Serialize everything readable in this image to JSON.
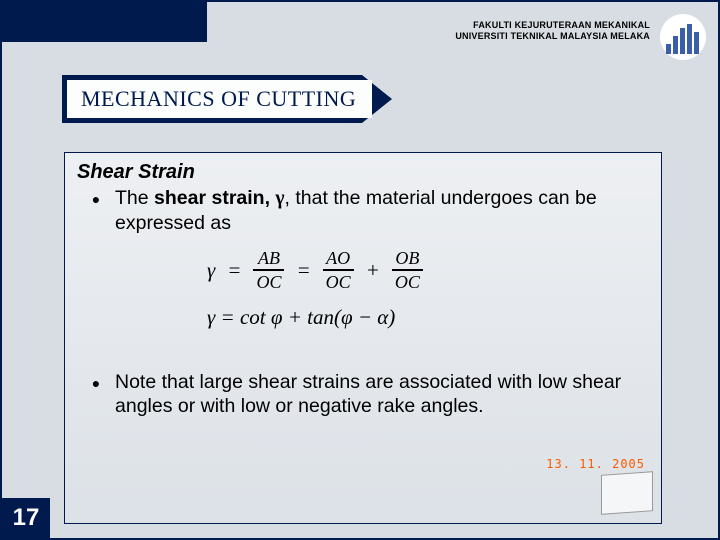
{
  "header": {
    "line1": "FAKULTI KEJURUTERAAN MEKANIKAL",
    "line2": "UNIVERSITI TEKNIKAL MALAYSIA MELAKA"
  },
  "title": "MECHANICS OF CUTTING",
  "section": {
    "heading": "Shear Strain",
    "bullet1_a": "The ",
    "bullet1_b": "shear strain, ",
    "bullet1_sym": "γ",
    "bullet1_c": ", that the material undergoes can be expressed as",
    "bullet2": "Note that large shear strains are associated with low shear angles or with low or negative rake angles."
  },
  "eq": {
    "gamma": "γ",
    "eq": "=",
    "plus": "+",
    "f1n": "AB",
    "f1d": "OC",
    "f2n": "AO",
    "f2d": "OC",
    "f3n": "OB",
    "f3d": "OC",
    "line2": "γ = cot φ + tan(φ − α)"
  },
  "date": "13. 11. 2005",
  "page": "17",
  "colors": {
    "navy": "#001a4d",
    "orange": "#ff5a00",
    "logo_bar": "#3b5ea8"
  }
}
